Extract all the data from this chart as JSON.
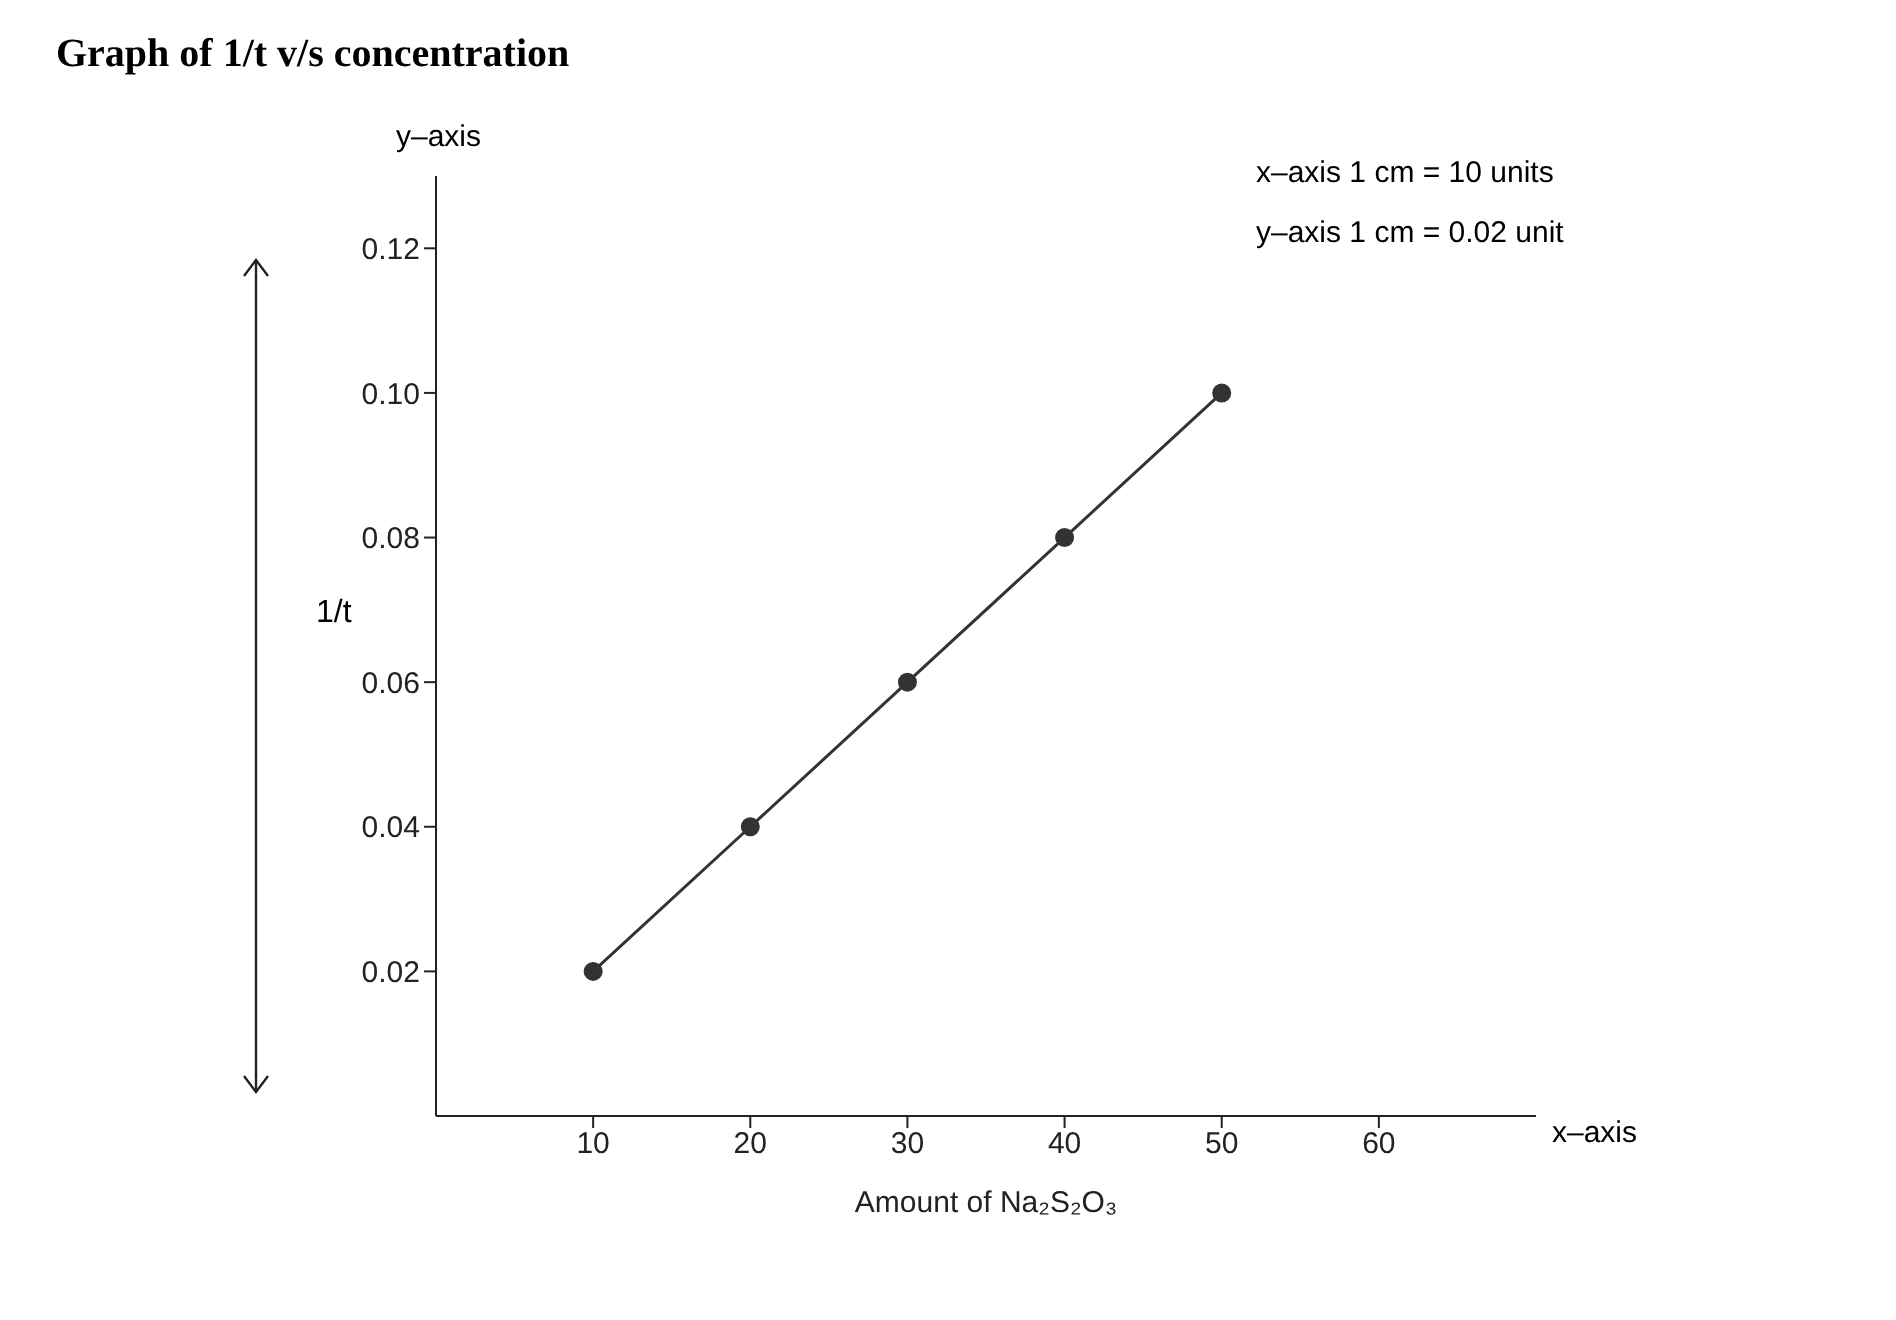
{
  "chart_data": {
    "type": "line",
    "title": "Graph of 1/t v/s concentration",
    "xlabel": "Amount of Na₂S₂O₃",
    "ylabel": "1/t",
    "annotations": [
      "y–axis",
      "x–axis",
      "x–axis 1 cm = 10 units",
      "y–axis 1 cm = 0.02 unit"
    ],
    "x": [
      10,
      20,
      30,
      40,
      50
    ],
    "series": [
      {
        "color": "#333333",
        "values": [
          0.02,
          0.04,
          0.06,
          0.08,
          0.1
        ]
      }
    ],
    "xlim": [
      0,
      70
    ],
    "xticks": [
      10,
      20,
      30,
      40,
      50,
      60
    ],
    "ylim": [
      0,
      0.13
    ],
    "yticks": [
      0.02,
      0.04,
      0.06,
      0.08,
      {
        "value": 0.1,
        "label": "0.10"
      },
      0.12
    ],
    "grid": false,
    "marker": "circle",
    "line_style": "solid"
  }
}
